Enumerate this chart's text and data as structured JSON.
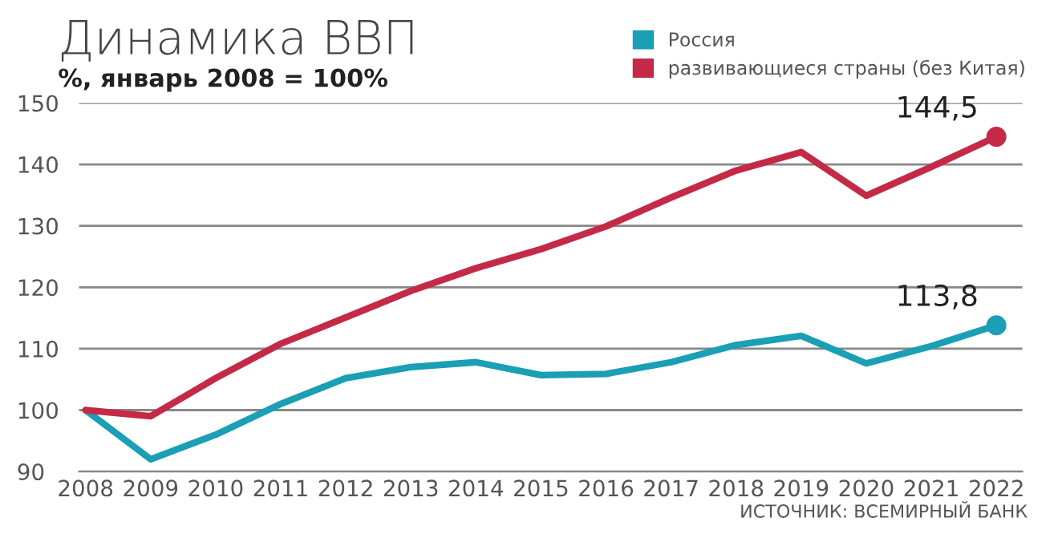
{
  "chart_data": {
    "type": "line",
    "title": "Динамика ВВП",
    "subtitle": "%, январь 2008 = 100%",
    "categories": [
      "2008",
      "2009",
      "2010",
      "2011",
      "2012",
      "2013",
      "2014",
      "2015",
      "2016",
      "2017",
      "2018",
      "2019",
      "2020",
      "2021",
      "2022"
    ],
    "series": [
      {
        "name": "Россия",
        "color": "#1a9fb4",
        "values": [
          100,
          92,
          96,
          101,
          105.2,
          107,
          107.8,
          105.7,
          105.9,
          107.8,
          110.6,
          112.1,
          107.6,
          110.4,
          113.8
        ]
      },
      {
        "name": "развивающиеся страны (без Китая)",
        "color": "#c42a47",
        "values": [
          100,
          99,
          105.2,
          110.8,
          115.1,
          119.4,
          123.1,
          126.2,
          129.9,
          134.6,
          139,
          142,
          134.9,
          139.6,
          144.5
        ]
      }
    ],
    "ylim": [
      90,
      150
    ],
    "yticks": [
      90,
      100,
      110,
      120,
      130,
      140,
      150
    ],
    "grid": "y",
    "legend": "top right",
    "annotations": [
      {
        "text": "144,5",
        "x": "2022",
        "y": 144.5
      },
      {
        "text": "113,8",
        "x": "2022",
        "y": 113.8
      },
      "ИСТОЧНИК: ВСЕМИРНЫЙ БАНК"
    ]
  }
}
